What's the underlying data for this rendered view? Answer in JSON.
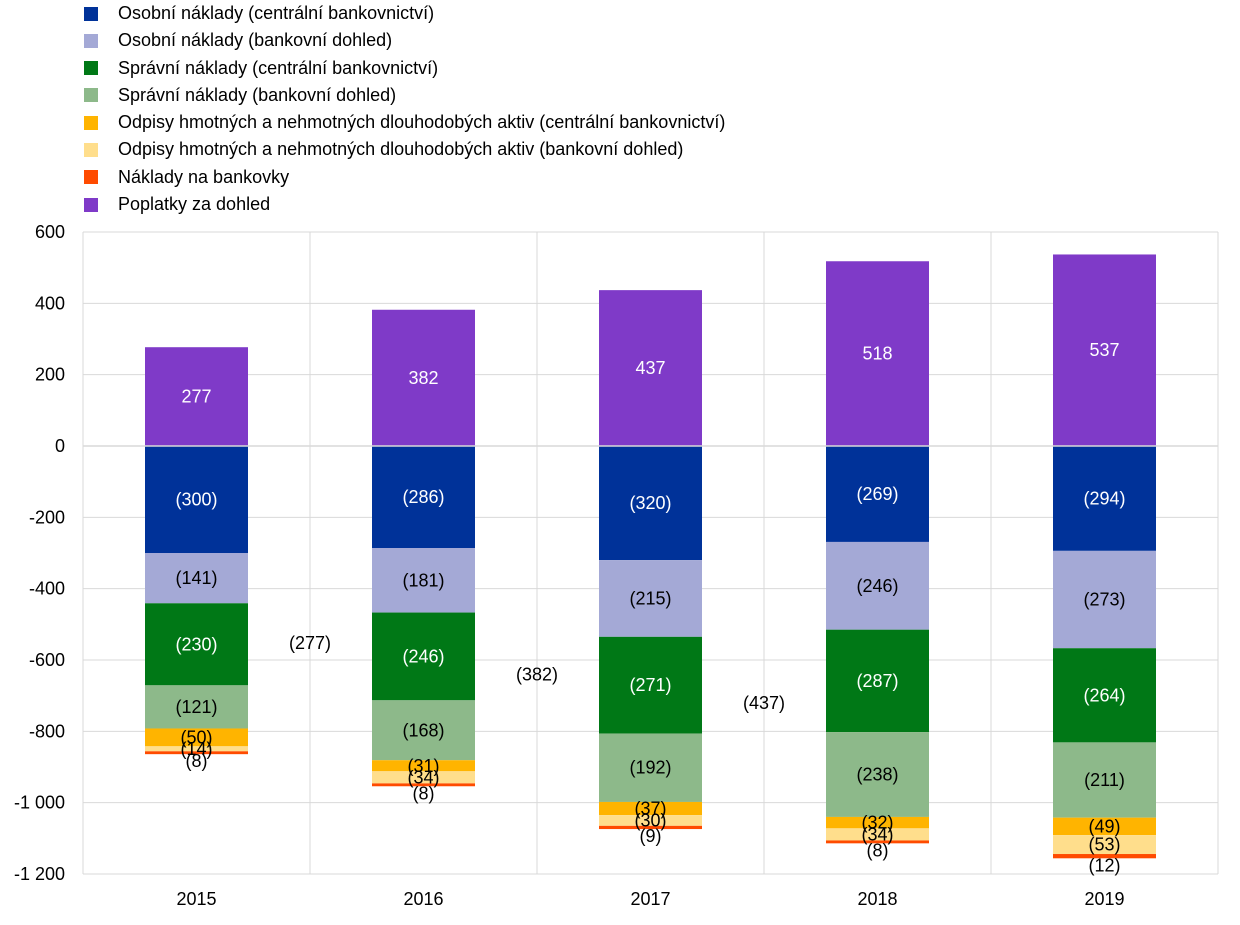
{
  "chart_data": {
    "type": "bar",
    "stacked": true,
    "categories": [
      "2015",
      "2016",
      "2017",
      "2018",
      "2019"
    ],
    "ylim": [
      -1200,
      600
    ],
    "yticks": [
      600,
      400,
      200,
      0,
      -200,
      -400,
      -600,
      -800,
      -1000,
      -1200
    ],
    "ytick_labels": [
      "600",
      "400",
      "200",
      "0",
      "-200",
      "-400",
      "-600",
      "-800",
      "-1 000",
      "-1 200"
    ],
    "grid": true,
    "legend_position": "top-left",
    "series": [
      {
        "name": "Osobní náklady (centrální bankovnictví)",
        "color": "#003299",
        "label_color": "#ffffff",
        "values": [
          -300,
          -286,
          -320,
          -269,
          -294
        ],
        "labels": [
          "(300)",
          "(286)",
          "(320)",
          "(269)",
          "(294)"
        ]
      },
      {
        "name": "Osobní náklady (bankovní dohled)",
        "color": "#a4a9d6",
        "label_color": "#000000",
        "values": [
          -141,
          -181,
          -215,
          -246,
          -273
        ],
        "labels": [
          "(141)",
          "(181)",
          "(215)",
          "(246)",
          "(273)"
        ]
      },
      {
        "name": "Správní náklady (centrální bankovnictví)",
        "color": "#007816",
        "label_color": "#ffffff",
        "values": [
          -230,
          -246,
          -271,
          -287,
          -264
        ],
        "labels": [
          "(230)",
          "(246)",
          "(271)",
          "(287)",
          "(264)"
        ]
      },
      {
        "name": "Správní náklady (bankovní dohled)",
        "color": "#8db98a",
        "label_color": "#000000",
        "values": [
          -121,
          -168,
          -192,
          -238,
          -211
        ],
        "labels": [
          "(121)",
          "(168)",
          "(192)",
          "(238)",
          "(211)"
        ]
      },
      {
        "name": "Odpisy hmotných a nehmotných dlouhodobých aktiv (centrální bankovnictví)",
        "color": "#ffb400",
        "label_color": "#000000",
        "values": [
          -50,
          -31,
          -37,
          -32,
          -49
        ],
        "labels": [
          "(50)",
          "(31)",
          "(37)",
          "(32)",
          "(49)"
        ]
      },
      {
        "name": "Odpisy hmotných a nehmotných dlouhodobých aktiv (bankovní dohled)",
        "color": "#ffde8c",
        "label_color": "#000000",
        "values": [
          -14,
          -34,
          -30,
          -34,
          -53
        ],
        "labels": [
          "(14)",
          "(34)",
          "(30)",
          "(34)",
          "(53)"
        ]
      },
      {
        "name": "Náklady na bankovky",
        "color": "#ff4b00",
        "label_color": "#000000",
        "values": [
          -8,
          -8,
          -9,
          -8,
          -12
        ],
        "labels": [
          "(8)",
          "(8)",
          "(9)",
          "(8)",
          "(12)"
        ]
      },
      {
        "name": "Poplatky za dohled",
        "color": "#7f3ac8",
        "label_color": "#ffffff",
        "values": [
          277,
          382,
          437,
          518,
          537
        ],
        "labels": [
          "277",
          "382",
          "437",
          "518",
          "537"
        ]
      }
    ],
    "annotations": [
      {
        "text": "(277)",
        "x": "2015-2016",
        "y": -553
      },
      {
        "text": "(382)",
        "x": "2016-2017",
        "y": -640
      },
      {
        "text": "(437)",
        "x": "2017-2018",
        "y": -720
      }
    ]
  }
}
